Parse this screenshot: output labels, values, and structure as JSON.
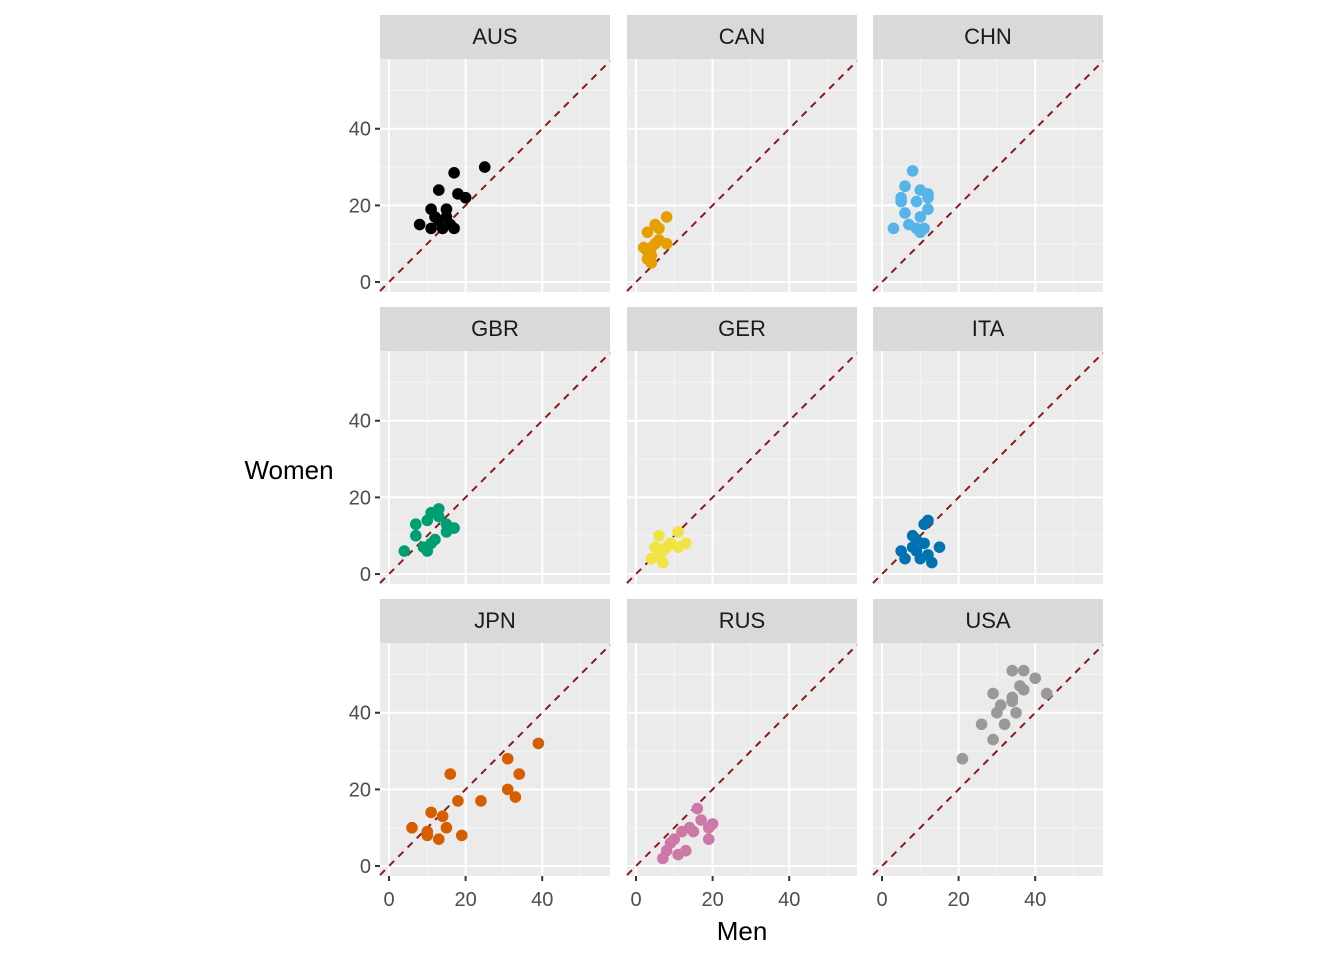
{
  "chart_data": {
    "type": "scatter",
    "facet_layout": "3x3 grid",
    "xlabel": "Men",
    "ylabel": "Women",
    "xlim": [
      -2.35,
      57.7
    ],
    "ylim": [
      -2.6,
      58.2
    ],
    "x_ticks": [
      0,
      20,
      40
    ],
    "y_ticks": [
      0,
      20,
      40
    ],
    "grid": true,
    "reference_line": {
      "type": "y = x",
      "style": "dashed",
      "color": "#8B1A1A"
    },
    "panels": [
      {
        "name": "AUS",
        "color": "#000000",
        "points": [
          [
            25,
            30
          ],
          [
            17,
            28.5
          ],
          [
            13,
            24
          ],
          [
            18,
            23
          ],
          [
            20,
            22
          ],
          [
            11,
            19
          ],
          [
            15,
            19
          ],
          [
            8,
            15
          ],
          [
            11,
            14
          ],
          [
            13,
            16
          ],
          [
            15,
            17
          ],
          [
            17,
            14
          ],
          [
            12,
            17
          ],
          [
            16,
            15
          ],
          [
            14,
            14
          ]
        ]
      },
      {
        "name": "CAN",
        "color": "#E69F00",
        "points": [
          [
            8,
            17
          ],
          [
            5,
            15
          ],
          [
            6,
            14
          ],
          [
            3,
            13
          ],
          [
            8,
            10
          ],
          [
            2,
            9
          ],
          [
            5,
            10
          ],
          [
            3,
            8
          ],
          [
            4,
            7
          ],
          [
            3,
            6
          ],
          [
            4,
            5
          ],
          [
            6,
            11
          ],
          [
            4,
            9
          ]
        ]
      },
      {
        "name": "CHN",
        "color": "#56B4E9",
        "points": [
          [
            8,
            29
          ],
          [
            6,
            25
          ],
          [
            10,
            24
          ],
          [
            12,
            23
          ],
          [
            5,
            22
          ],
          [
            9,
            21
          ],
          [
            12,
            22
          ],
          [
            5,
            21
          ],
          [
            12,
            19
          ],
          [
            6,
            18
          ],
          [
            10,
            17
          ],
          [
            3,
            14
          ],
          [
            7,
            15
          ],
          [
            9,
            14
          ],
          [
            11,
            14
          ],
          [
            10,
            13
          ]
        ]
      },
      {
        "name": "GBR",
        "color": "#009E73",
        "points": [
          [
            4,
            6
          ],
          [
            7,
            13
          ],
          [
            7,
            10
          ],
          [
            10,
            14
          ],
          [
            11,
            16
          ],
          [
            13,
            17
          ],
          [
            13,
            15
          ],
          [
            12,
            9
          ],
          [
            10,
            6
          ],
          [
            9,
            7
          ],
          [
            15,
            11
          ],
          [
            17,
            12
          ],
          [
            15,
            13
          ],
          [
            11,
            8
          ]
        ]
      },
      {
        "name": "GER",
        "color": "#F0E442",
        "points": [
          [
            6,
            10
          ],
          [
            11,
            11
          ],
          [
            13,
            8
          ],
          [
            11,
            7
          ],
          [
            5,
            7
          ],
          [
            7,
            6
          ],
          [
            4,
            4
          ],
          [
            7,
            3
          ],
          [
            6,
            5
          ],
          [
            9,
            8
          ],
          [
            8,
            7
          ]
        ]
      },
      {
        "name": "ITA",
        "color": "#0072B2",
        "points": [
          [
            12,
            14
          ],
          [
            11,
            13
          ],
          [
            9,
            9
          ],
          [
            8,
            10
          ],
          [
            8,
            7
          ],
          [
            11,
            8
          ],
          [
            15,
            7
          ],
          [
            5,
            6
          ],
          [
            6,
            4
          ],
          [
            10,
            4
          ],
          [
            13,
            3
          ],
          [
            9,
            6
          ],
          [
            12,
            5
          ]
        ]
      },
      {
        "name": "JPN",
        "color": "#D55E00",
        "points": [
          [
            39,
            32
          ],
          [
            31,
            28
          ],
          [
            34,
            24
          ],
          [
            16,
            24
          ],
          [
            31,
            20
          ],
          [
            33,
            18
          ],
          [
            24,
            17
          ],
          [
            18,
            17
          ],
          [
            11,
            14
          ],
          [
            6,
            10
          ],
          [
            14,
            13
          ],
          [
            10,
            9
          ],
          [
            15,
            10
          ],
          [
            19,
            8
          ],
          [
            13,
            7
          ],
          [
            10,
            8
          ]
        ]
      },
      {
        "name": "RUS",
        "color": "#CC79A7",
        "points": [
          [
            16,
            15
          ],
          [
            17,
            12
          ],
          [
            20,
            11
          ],
          [
            14,
            10
          ],
          [
            19,
            10
          ],
          [
            12,
            9
          ],
          [
            15,
            9
          ],
          [
            19,
            7
          ],
          [
            9,
            6
          ],
          [
            13,
            4
          ],
          [
            11,
            3
          ],
          [
            8,
            4
          ],
          [
            7,
            2
          ],
          [
            10,
            7
          ]
        ]
      },
      {
        "name": "USA",
        "color": "#999999",
        "points": [
          [
            34,
            51
          ],
          [
            37,
            51
          ],
          [
            40,
            49
          ],
          [
            36,
            47
          ],
          [
            37,
            46
          ],
          [
            43,
            45
          ],
          [
            29,
            45
          ],
          [
            34,
            44
          ],
          [
            31,
            42
          ],
          [
            30,
            40
          ],
          [
            35,
            40
          ],
          [
            26,
            37
          ],
          [
            32,
            37
          ],
          [
            29,
            33
          ],
          [
            21,
            28
          ],
          [
            34,
            43
          ]
        ]
      }
    ]
  }
}
